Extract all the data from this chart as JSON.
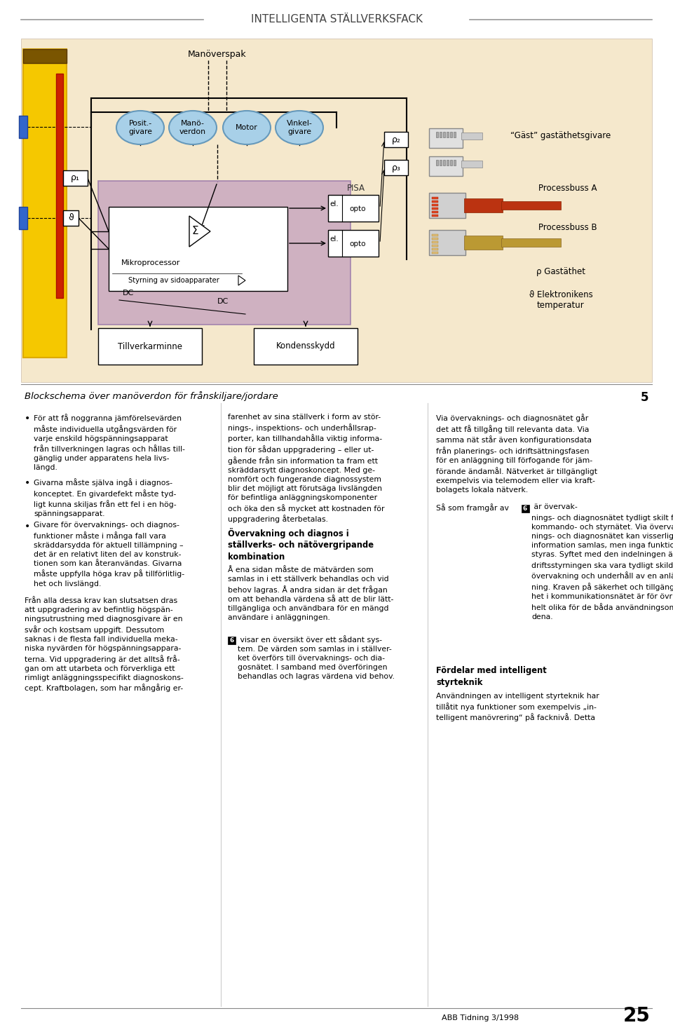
{
  "title_header": "INTELLIGENTA STÄLLVERKSFACK",
  "bg_color": "#ffffff",
  "diagram_bg": "#f5e8cc",
  "inner_box_bg": "#c9a8c0",
  "blue_ellipse_color": "#a8d0e8",
  "blue_ellipse_edge": "#6699bb",
  "diagram_title": "Manöverspak",
  "ellipse_labels": [
    "Posit.-\ngivare",
    "Manö-\nverdon",
    "Motor",
    "Vinkel-\ngivare"
  ],
  "rho2_label": "ρ₂",
  "rho3_label": "ρ₃",
  "gas_label": "“Gäst” gastäthetsgivare",
  "pisa_label": "PISA",
  "processbuss_a": "Processbuss A",
  "processbuss_b": "Processbuss B",
  "mikroprocessor_label": "Mikroprocessor",
  "sigma_label": "Σ",
  "styrning_label": "Styrning av sidoapparater",
  "dc_label": "DC",
  "dc_label2": "DC",
  "tillverkarminne_label": "Tillverkarminne",
  "kondensskydd_label": "Kondensskydd",
  "rho_gastathet": "ρ Gastäthet",
  "theta_elektronikens": "ϑ Elektronikens\ntemperatur",
  "rho1_label": "ρ₁",
  "theta1_label": "ϑ",
  "caption": "Blockschema över manöverdon för frånskiljare/jordare",
  "caption_num": "5",
  "footer": "ABB Tidning 3/1998",
  "page_num": "25",
  "col1_bullet1": "För att få noggranna jämförelsevärden\nmåste individuella utgångsvärden för\nvarje enskild högspänningsapparat\nfrån tillverkningen lagras och hållas till-\ngänglig under apparatens hela livs-\nlängd.",
  "col1_bullet2": "Givarna måste själva ingå i diagnos-\nkonceptet. En givardefekt måste tyd-\nligt kunna skiljas från ett fel i en hög-\nspänningsapparat.",
  "col1_bullet3": "Givare för övervaknings- och diagnos-\nfunktioner måste i många fall vara\nskräddarsydda för aktuell tillämpning –\ndet är en relativt liten del av konstruk-\ntionen som kan återanvändas. Givarna\nmåste uppfylla höga krav på tillförlitlig-\nhet och livslängd.",
  "col1_para": "Från alla dessa krav kan slutsatsen dras\natt uppgradering av befintlig högspän-\nningsutrustning med diagnosgivare är en\nsvår och kostsam uppgift. Dessutom\nsaknas i de flesta fall individuella meka-\nniska nyvärden för högspänningsappara-\nterna. Vid uppgradering är det alltså frå-\ngan om att utarbeta och förverkliga ett\nrimligt anläggningsspecifikt diagnoskons-\ncept. Kraftbolagen, som har mångårig er-",
  "col2_para1": "farenhet av sina ställverk i form av stör-\nnings-, inspektions- och underhållsrap-\nporter, kan tillhandahålla viktig informa-\ntion för sådan uppgradering – eller ut-\ngående från sin information ta fram ett\nskräddarsytt diagnoskoncept. Med ge-\nnomfört och fungerande diagnossystem\nblir det möjligt att förutsäga livslängden\nför befintliga anläggningskomponenter\noch öka den så mycket att kostnaden för\nuppgradering återbetalas.",
  "col2_title": "Övervakning och diagnos i\nställverks- och nätövergripande\nkombination",
  "col2_para2": "Å ena sidan måste de mätvärden som\nsamlas in i ett ställverk behandlas och vid\nbehov lagras. Å andra sidan är det frågan\nom att behandla värdena så att de blir lätt-\ntillgängliga och användbara för en mängd\nanvändare i anläggningen.",
  "col2_para3": " visar en översikt över ett sådant sys-\ntem. De värden som samlas in i ställver-\nket överförs till övervaknings- och dia-\ngosnätet. I samband med överföringen\nbehandlas och lagras värdena vid behov.",
  "col3_para1": "Via övervaknings- och diagnosnätet går\ndet att få tillgång till relevanta data. Via\nsamma nät står även konfigurationsdata\nfrån planerings- och idriftsättningsfasen\nför en anläggning till förfogande för jäm-\nförande ändamål. Nätverket är tillgängligt\nexempelvis via telemodem eller via kraft-\nbolagets lokala nätverk.",
  "col3_para2": " är övervak-\nnings- och diagnosnätet tydligt skilt från\nkommando- och styrnätet. Via övervak-\nnings- och diagnosnätet kan visserligen\ninformation samlas, men inga funktioner\nstyras. Syftet med den indelningen är att\ndriftsstyrningen ska vara tydligt skild från\növervakning och underhåll av en anlägg-\nning. Kraven på säkerhet och tillgänglig-\nhet i kommunikationsnätet är för övrigt\nhelt olika för de båda användningsområ-\ndena.",
  "col3_title": "Fördelar med intelligent\nstyrteknik",
  "col3_para3": "Användningen av intelligent styrteknik har\ntillåtit nya funktioner som exempelvis „in-\ntelligent manövrering“ på facknivå. Detta"
}
